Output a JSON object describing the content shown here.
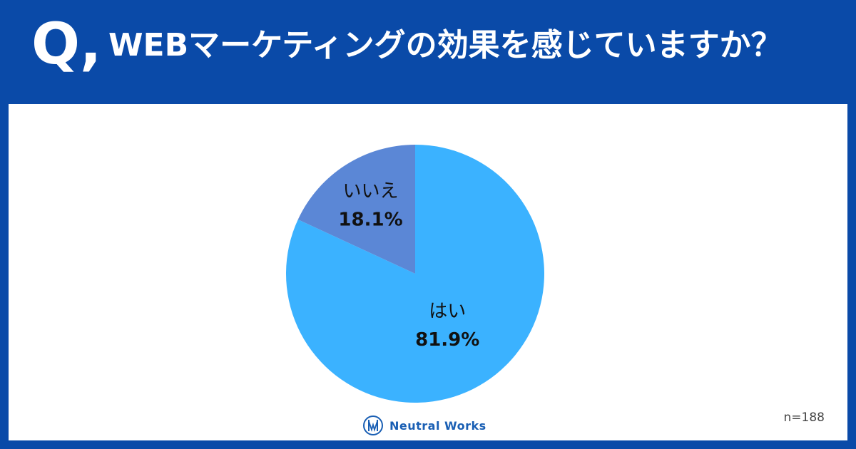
{
  "header": {
    "q_mark": "Q,",
    "question": "WEBマーケティングの効果を感じていますか？"
  },
  "chart_data": {
    "type": "pie",
    "title": "",
    "slices": [
      {
        "label": "はい",
        "value": 81.9,
        "display": "81.9%",
        "color": "#3bb2ff"
      },
      {
        "label": "いいえ",
        "value": 18.1,
        "display": "18.1%",
        "color": "#5b87d6"
      }
    ]
  },
  "footer": {
    "brand": "Neutral Works",
    "logo_icon": "neutral-works-logo-icon",
    "sample_size": "n=188"
  },
  "colors": {
    "header_bg": "#0a4aa8",
    "panel_bg": "#ffffff",
    "yes": "#3bb2ff",
    "no": "#5b87d6"
  }
}
